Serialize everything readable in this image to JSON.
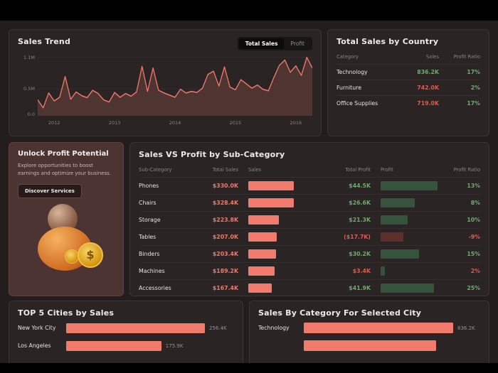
{
  "colors": {
    "accent_salmon": "#f07a6c",
    "green": "#6cae6c",
    "red": "#e25b4e",
    "bar_green": "#36543b",
    "bar_red": "#5c2f2b",
    "area_fill": "#4e3531",
    "muted": "#8e8383"
  },
  "trend_toggle": {
    "options": [
      {
        "label": "Total Sales",
        "active": true
      },
      {
        "label": "Profit",
        "active": false
      }
    ]
  },
  "promo": {
    "title": "Unlock Profit Potential",
    "body": "Explore opportunities to boost earnings and optimize your business.",
    "cta": "Discover Services",
    "coin_symbol": "$"
  },
  "chart_data": [
    {
      "id": "sales_trend",
      "type": "area",
      "title": "Sales Trend",
      "series_name": "Total Sales",
      "ylim": [
        0,
        1.15
      ],
      "y_ticks": [
        "1.1M",
        "0.5M",
        "0.0"
      ],
      "x_ticks": [
        "2012",
        "2013",
        "2014",
        "2015",
        "2016"
      ],
      "unit": "M",
      "values": [
        0.3,
        0.15,
        0.43,
        0.28,
        0.35,
        0.74,
        0.31,
        0.45,
        0.38,
        0.34,
        0.48,
        0.42,
        0.3,
        0.26,
        0.44,
        0.35,
        0.42,
        0.37,
        0.45,
        0.93,
        0.46,
        0.9,
        0.48,
        0.43,
        0.39,
        0.35,
        0.5,
        0.43,
        0.46,
        0.44,
        0.52,
        0.78,
        0.84,
        0.56,
        0.92,
        0.54,
        0.49,
        0.68,
        0.6,
        0.52,
        0.58,
        0.5,
        0.47,
        0.72,
        0.95,
        1.05,
        0.82,
        0.94,
        0.76,
        1.1,
        0.9
      ]
    },
    {
      "id": "total_sales_by_country",
      "type": "table",
      "title": "Total Sales by Country",
      "columns": [
        "Category",
        "Sales",
        "Profit Ratio"
      ],
      "rows": [
        {
          "category": "Technology",
          "sales": "836.2K",
          "sales_color": "#6cae6c",
          "ratio": "17%",
          "ratio_color": "#6cae6c"
        },
        {
          "category": "Furniture",
          "sales": "742.0K",
          "sales_color": "#e25b4e",
          "ratio": "2%",
          "ratio_color": "#6cae6c"
        },
        {
          "category": "Office Supplies",
          "sales": "719.0K",
          "sales_color": "#e25b4e",
          "ratio": "17%",
          "ratio_color": "#6cae6c"
        }
      ]
    },
    {
      "id": "sales_vs_profit_by_subcategory",
      "type": "bar",
      "title": "Sales VS Profit by Sub-Category",
      "columns": [
        "Sub-Category",
        "Total Sales",
        "Sales",
        "Total Profit",
        "Profit",
        "Profit Ratio"
      ],
      "sales_max": 330.0,
      "profit_max": 44.5,
      "rows": [
        {
          "name": "Phones",
          "total_sales": "$330.0K",
          "sales_value": 330.0,
          "total_profit": "$44.5K",
          "profit_value": 44.5,
          "profit_text_color": "#6cae6c",
          "profit_bar_color": "#36543b",
          "ratio": "13%",
          "ratio_color": "#6cae6c"
        },
        {
          "name": "Chairs",
          "total_sales": "$328.4K",
          "sales_value": 328.4,
          "total_profit": "$26.6K",
          "profit_value": 26.6,
          "profit_text_color": "#6cae6c",
          "profit_bar_color": "#36543b",
          "ratio": "8%",
          "ratio_color": "#6cae6c"
        },
        {
          "name": "Storage",
          "total_sales": "$223.8K",
          "sales_value": 223.8,
          "total_profit": "$21.3K",
          "profit_value": 21.3,
          "profit_text_color": "#6cae6c",
          "profit_bar_color": "#36543b",
          "ratio": "10%",
          "ratio_color": "#6cae6c"
        },
        {
          "name": "Tables",
          "total_sales": "$207.0K",
          "sales_value": 207.0,
          "total_profit": "($17.7K)",
          "profit_value": 17.7,
          "profit_text_color": "#e25b4e",
          "profit_bar_color": "#5c2f2b",
          "ratio": "-9%",
          "ratio_color": "#e25b4e"
        },
        {
          "name": "Binders",
          "total_sales": "$203.4K",
          "sales_value": 203.4,
          "total_profit": "$30.2K",
          "profit_value": 30.2,
          "profit_text_color": "#6cae6c",
          "profit_bar_color": "#36543b",
          "ratio": "15%",
          "ratio_color": "#6cae6c"
        },
        {
          "name": "Machines",
          "total_sales": "$189.2K",
          "sales_value": 189.2,
          "total_profit": "$3.4K",
          "profit_value": 3.4,
          "profit_text_color": "#e25b4e",
          "profit_bar_color": "#36543b",
          "ratio": "2%",
          "ratio_color": "#e25b4e"
        },
        {
          "name": "Accessories",
          "total_sales": "$167.4K",
          "sales_value": 167.4,
          "total_profit": "$41.9K",
          "profit_value": 41.9,
          "profit_text_color": "#6cae6c",
          "profit_bar_color": "#36543b",
          "ratio": "25%",
          "ratio_color": "#6cae6c"
        }
      ]
    },
    {
      "id": "top_cities_by_sales",
      "type": "bar",
      "title": "TOP 5 Cities by Sales",
      "max": 256.4,
      "rows": [
        {
          "city": "New York City",
          "value": 256.4,
          "label": "256.4K"
        },
        {
          "city": "Los Angeles",
          "value": 175.9,
          "label": "175.9K"
        }
      ]
    },
    {
      "id": "sales_by_category_for_selected_city",
      "type": "bar",
      "title": "Sales By Category For Selected City",
      "max": 836.2,
      "rows": [
        {
          "category": "Technology",
          "value": 836.2,
          "label": "836.2K"
        },
        {
          "category": "",
          "value": 742.0,
          "label": ""
        }
      ]
    }
  ]
}
